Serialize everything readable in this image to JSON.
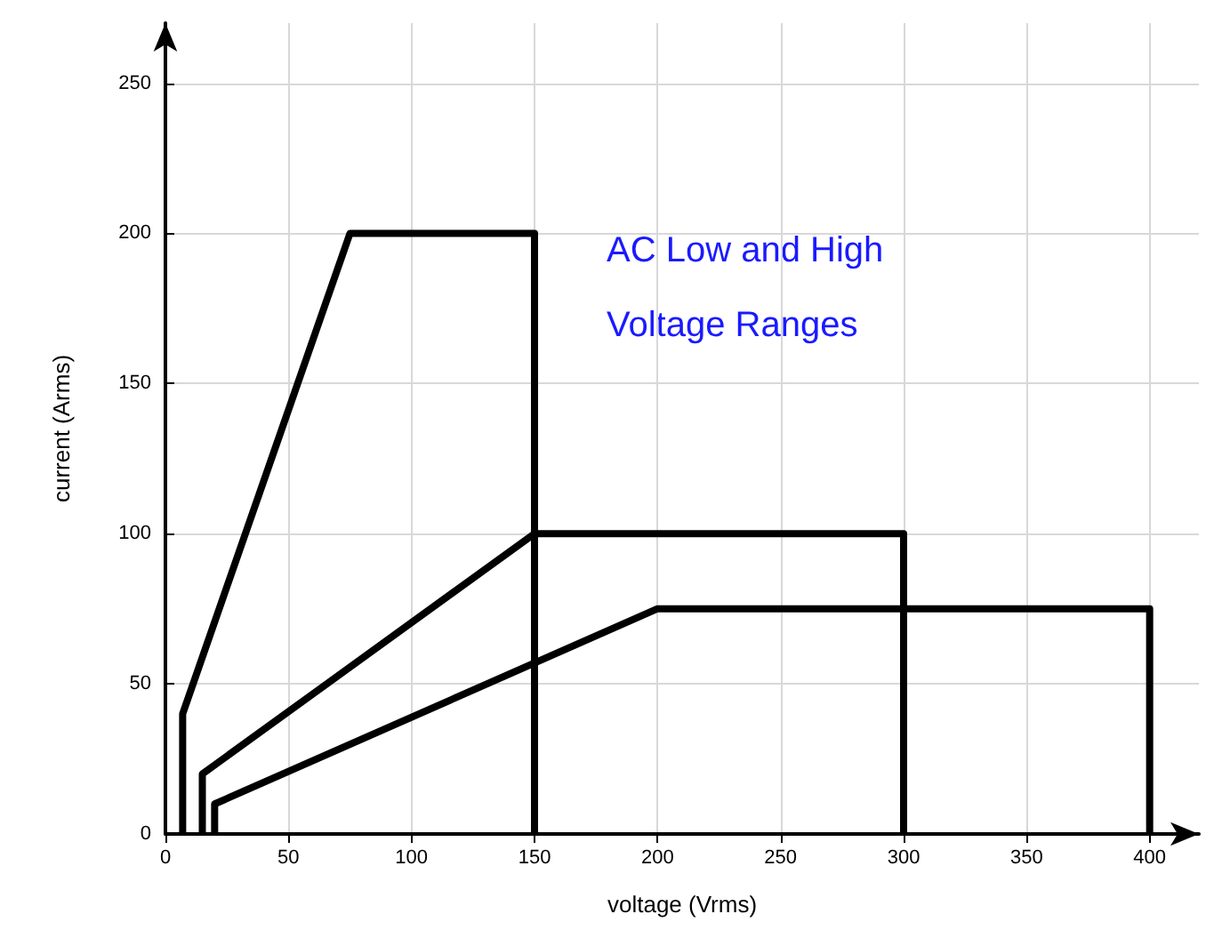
{
  "chart_data": {
    "type": "line",
    "xlabel": "voltage (Vrms)",
    "ylabel": "current (Arms)",
    "annotations": [
      "AC Low and High Voltage Ranges"
    ],
    "series": [
      {
        "color": "#000000",
        "x": [
          7,
          7,
          75,
          150,
          150
        ],
        "values": [
          0,
          40,
          200,
          200,
          0
        ]
      },
      {
        "color": "#000000",
        "x": [
          15,
          15,
          150,
          300,
          300
        ],
        "values": [
          0,
          20,
          100,
          100,
          0
        ]
      },
      {
        "color": "#000000",
        "x": [
          20,
          20,
          200,
          400,
          400
        ],
        "values": [
          0,
          10,
          75,
          75,
          0
        ]
      }
    ],
    "xlim": [
      0,
      420
    ],
    "ylim": [
      0,
      270
    ],
    "xticks": [
      0,
      50,
      100,
      150,
      200,
      250,
      300,
      350,
      400
    ],
    "yticks": [
      0,
      50,
      100,
      150,
      200,
      250
    ],
    "grid": true,
    "marker": "none",
    "line_style": "solid"
  }
}
